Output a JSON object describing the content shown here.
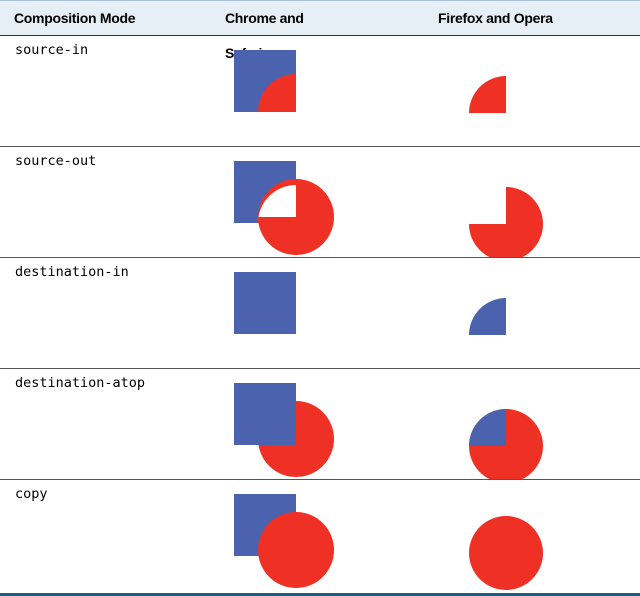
{
  "table": {
    "headers": [
      "Composition Mode",
      "Chrome and Safari",
      "Firefox and Opera"
    ],
    "rows": [
      {
        "mode": "source-in",
        "chrome_safari_shape": "red-quarter-circle-over-blue-square",
        "firefox_opera_shape": "red-quarter-circle-only"
      },
      {
        "mode": "source-out",
        "chrome_safari_shape": "blue-square-and-red-circle-with-white-overlap",
        "firefox_opera_shape": "red-circle-missing-quarter"
      },
      {
        "mode": "destination-in",
        "chrome_safari_shape": "blue-square-only",
        "firefox_opera_shape": "blue-quarter-circle-only"
      },
      {
        "mode": "destination-atop",
        "chrome_safari_shape": "blue-square-over-red-circle",
        "firefox_opera_shape": "red-circle-with-blue-quarter"
      },
      {
        "mode": "copy",
        "chrome_safari_shape": "red-circle-over-blue-square",
        "firefox_opera_shape": "red-circle-only"
      }
    ]
  },
  "colors": {
    "blue": "#4b63af",
    "red": "#ee3124",
    "header_bg": "#e6eef6",
    "bottom_rule": "#1f5d80"
  }
}
